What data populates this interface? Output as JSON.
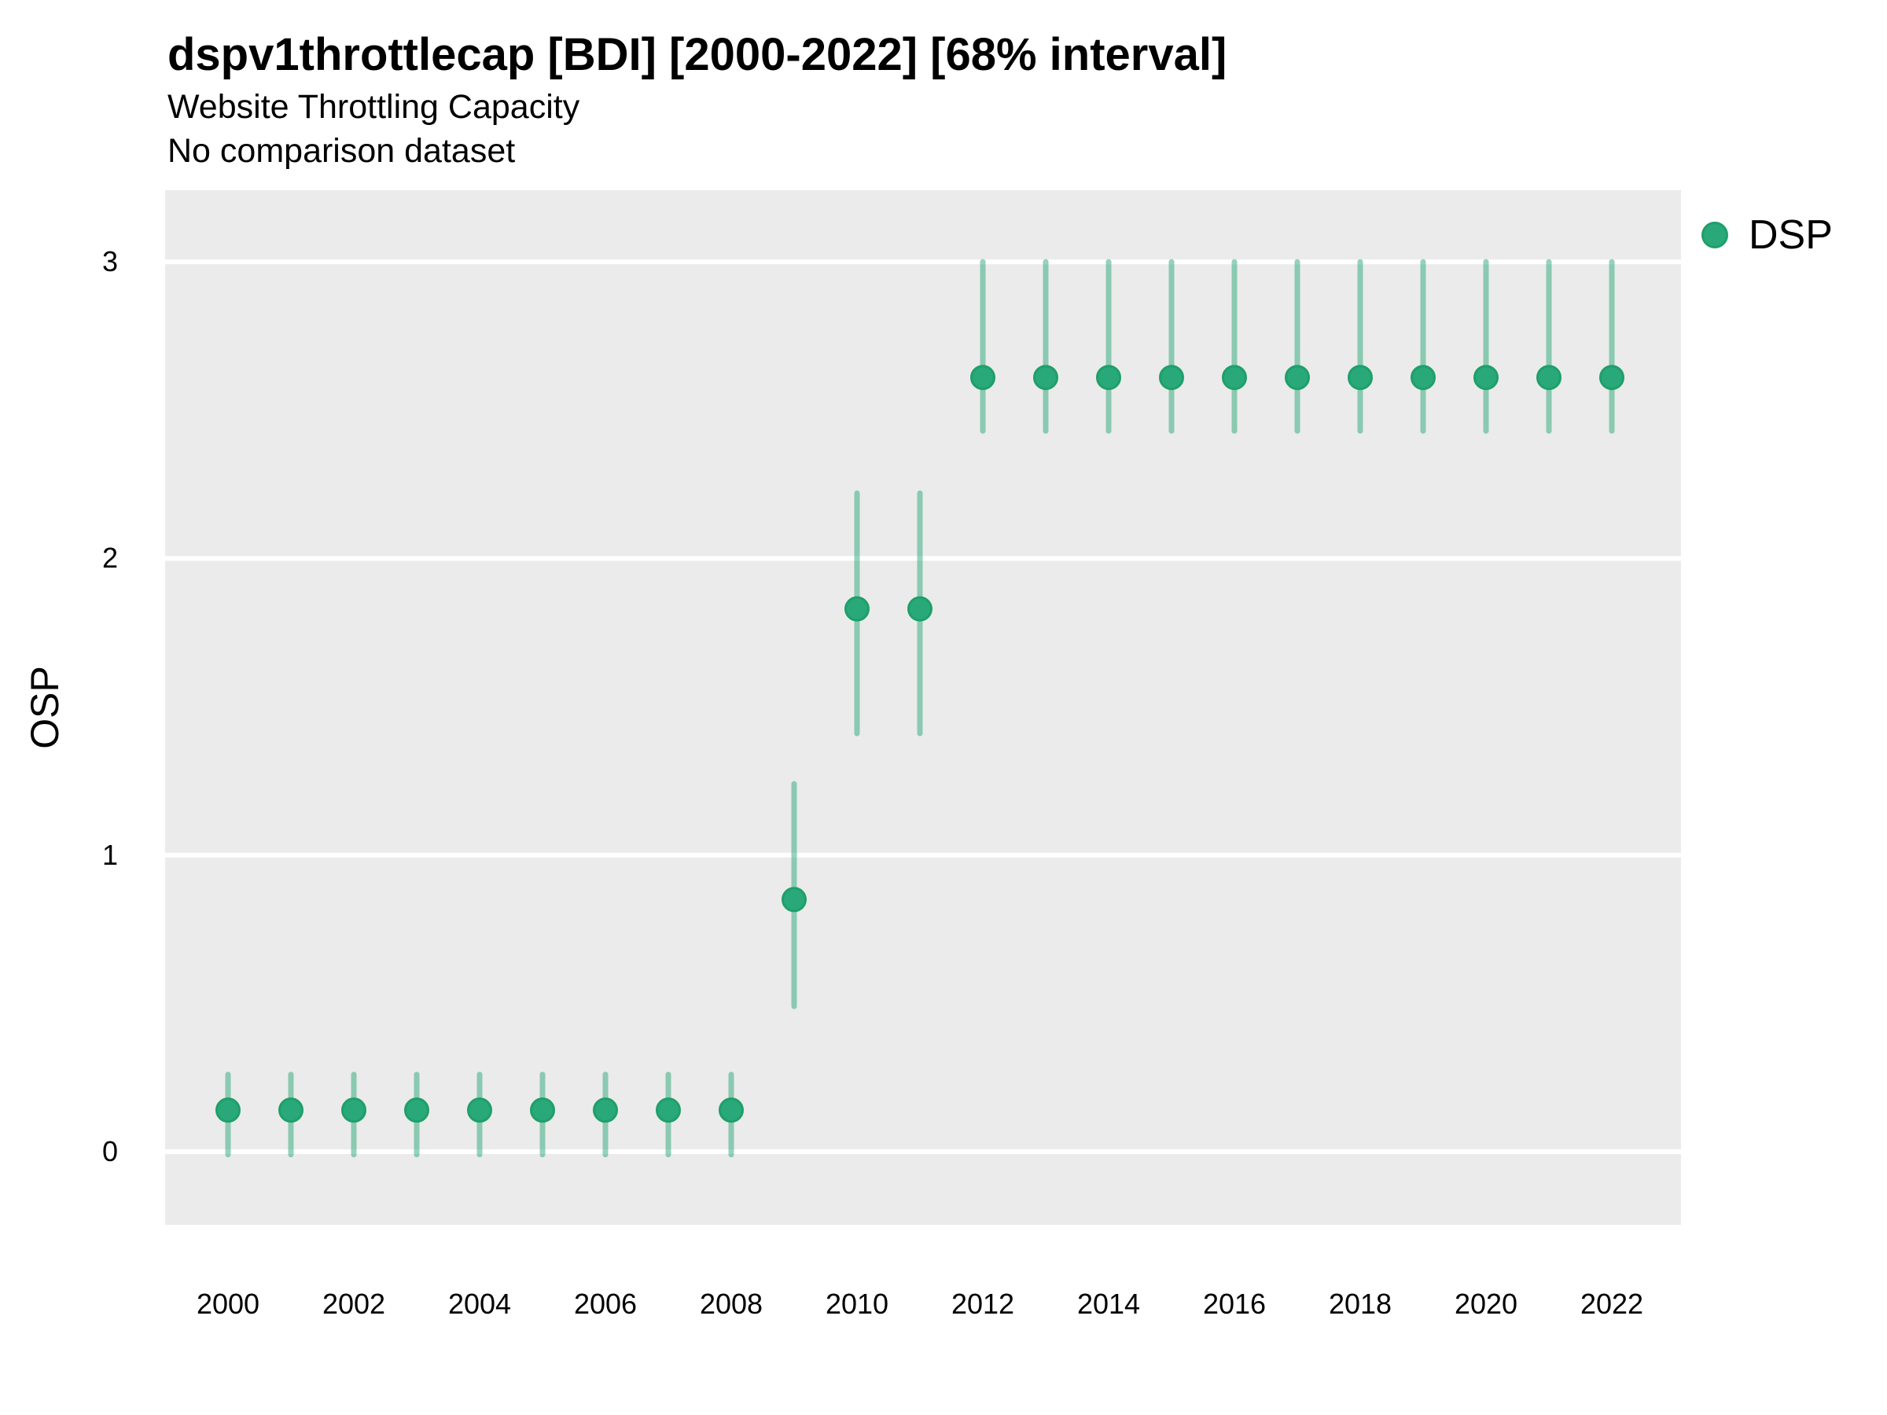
{
  "header": {
    "title": "dspv1throttlecap [BDI] [2000-2022] [68% interval]",
    "subtitle": "Website Throttling Capacity",
    "comparison_note": "No comparison dataset"
  },
  "chart_data": {
    "type": "pointrange",
    "title": "dspv1throttlecap [BDI] [2000-2022] [68% interval]",
    "subtitle": "Website Throttling Capacity",
    "note": "No comparison dataset",
    "interval_label": "68% interval",
    "xlabel": "",
    "ylabel": "OSP",
    "x_ticks": [
      2000,
      2002,
      2004,
      2006,
      2008,
      2010,
      2012,
      2014,
      2016,
      2018,
      2020,
      2022
    ],
    "y_ticks": [
      0,
      1,
      2,
      3
    ],
    "xlim": [
      1999,
      2023.1
    ],
    "ylim": [
      -0.25,
      3.24
    ],
    "grid": "major-horizontal-only",
    "legend_position": "right",
    "colors": {
      "panel_background": "#ebebeb",
      "gridline": "#ffffff",
      "point_fill": "#29a879",
      "point_stroke": "#1f9f6a",
      "interval_stroke": "rgba(41,168,121,0.5)",
      "text": "#000000"
    },
    "series": [
      {
        "name": "DSP",
        "color": "#29a879",
        "stroke": "#1f9f6a",
        "interval_color": "rgba(41,168,121,0.5)",
        "points": [
          {
            "year": 2000,
            "estimate": 0.14,
            "lo": -0.01,
            "hi": 0.26
          },
          {
            "year": 2001,
            "estimate": 0.14,
            "lo": -0.01,
            "hi": 0.26
          },
          {
            "year": 2002,
            "estimate": 0.14,
            "lo": -0.01,
            "hi": 0.26
          },
          {
            "year": 2003,
            "estimate": 0.14,
            "lo": -0.01,
            "hi": 0.26
          },
          {
            "year": 2004,
            "estimate": 0.14,
            "lo": -0.01,
            "hi": 0.26
          },
          {
            "year": 2005,
            "estimate": 0.14,
            "lo": -0.01,
            "hi": 0.26
          },
          {
            "year": 2006,
            "estimate": 0.14,
            "lo": -0.01,
            "hi": 0.26
          },
          {
            "year": 2007,
            "estimate": 0.14,
            "lo": -0.01,
            "hi": 0.26
          },
          {
            "year": 2008,
            "estimate": 0.14,
            "lo": -0.01,
            "hi": 0.26
          },
          {
            "year": 2009,
            "estimate": 0.85,
            "lo": 0.49,
            "hi": 1.24
          },
          {
            "year": 2010,
            "estimate": 1.83,
            "lo": 1.41,
            "hi": 2.22
          },
          {
            "year": 2011,
            "estimate": 1.83,
            "lo": 1.41,
            "hi": 2.22
          },
          {
            "year": 2012,
            "estimate": 2.61,
            "lo": 2.43,
            "hi": 3.0
          },
          {
            "year": 2013,
            "estimate": 2.61,
            "lo": 2.43,
            "hi": 3.0
          },
          {
            "year": 2014,
            "estimate": 2.61,
            "lo": 2.43,
            "hi": 3.0
          },
          {
            "year": 2015,
            "estimate": 2.61,
            "lo": 2.43,
            "hi": 3.0
          },
          {
            "year": 2016,
            "estimate": 2.61,
            "lo": 2.43,
            "hi": 3.0
          },
          {
            "year": 2017,
            "estimate": 2.61,
            "lo": 2.43,
            "hi": 3.0
          },
          {
            "year": 2018,
            "estimate": 2.61,
            "lo": 2.43,
            "hi": 3.0
          },
          {
            "year": 2019,
            "estimate": 2.61,
            "lo": 2.43,
            "hi": 3.0
          },
          {
            "year": 2020,
            "estimate": 2.61,
            "lo": 2.43,
            "hi": 3.0
          },
          {
            "year": 2021,
            "estimate": 2.61,
            "lo": 2.43,
            "hi": 3.0
          },
          {
            "year": 2022,
            "estimate": 2.61,
            "lo": 2.43,
            "hi": 3.0
          }
        ]
      }
    ]
  }
}
